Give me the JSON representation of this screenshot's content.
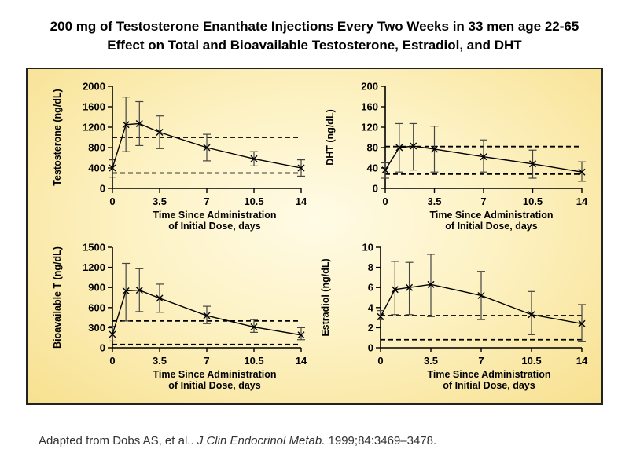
{
  "title": {
    "line1": "200 mg of Testosterone Enanthate Injections Every Two Weeks in 33  men age 22-65",
    "line2": "Effect on Total and Bioavailable Testosterone, Estradiol, and DHT"
  },
  "citation": {
    "prefix": "Adapted from Dobs AS,  et al.. ",
    "journal": "J Clin Endocrinol Metab.",
    "suffix": " 1999;84:3469–3478."
  },
  "colors": {
    "background_inner": "#fffbe6",
    "background_outer": "#f7e08f",
    "line": "#000000",
    "error_bar": "#444444"
  },
  "chart_data": [
    {
      "id": "testosterone",
      "type": "line",
      "title": "",
      "xlabel": [
        "Time Since Administration",
        "of Initial Dose, days"
      ],
      "ylabel": "Testosterone (ng/dL)",
      "xticks": [
        0,
        3.5,
        7,
        10.5,
        14
      ],
      "xtick_labels": [
        "0",
        "3.5",
        "7",
        "10.5",
        "14"
      ],
      "xlim": [
        0,
        14
      ],
      "yticks": [
        0,
        400,
        800,
        1200,
        1600,
        2000
      ],
      "ylim": [
        0,
        2000
      ],
      "grid": false,
      "reference_lines": [
        300,
        1000
      ],
      "series": [
        {
          "x": [
            0,
            1,
            2,
            3.5,
            7,
            10.5,
            14
          ],
          "y": [
            400,
            1250,
            1270,
            1100,
            800,
            580,
            400
          ],
          "err_low": [
            220,
            720,
            840,
            780,
            540,
            440,
            240
          ],
          "err_high": [
            560,
            1790,
            1700,
            1420,
            1060,
            720,
            560
          ]
        }
      ]
    },
    {
      "id": "dht",
      "type": "line",
      "title": "",
      "xlabel": [
        "Time Since Administration",
        "of Initial Dose, days"
      ],
      "ylabel": "DHT (ng/dL)",
      "xticks": [
        0,
        3.5,
        7,
        10.5,
        14
      ],
      "xtick_labels": [
        "0",
        "3.5",
        "7",
        "10.5",
        "14"
      ],
      "xlim": [
        0,
        14
      ],
      "yticks": [
        0,
        40,
        80,
        120,
        160,
        200
      ],
      "ylim": [
        0,
        200
      ],
      "grid": false,
      "reference_lines": [
        28,
        82
      ],
      "series": [
        {
          "x": [
            0,
            1,
            2,
            3.5,
            7,
            10.5,
            14
          ],
          "y": [
            36,
            80,
            83,
            77,
            62,
            48,
            32
          ],
          "err_low": [
            20,
            32,
            36,
            32,
            32,
            20,
            14
          ],
          "err_high": [
            50,
            127,
            127,
            122,
            95,
            75,
            52
          ]
        }
      ]
    },
    {
      "id": "bioavailable-t",
      "type": "line",
      "title": "",
      "xlabel": [
        "Time Since Administration",
        "of Initial Dose, days"
      ],
      "ylabel": "Bioavailable T (ng/dL)",
      "xticks": [
        0,
        3.5,
        7,
        10.5,
        14
      ],
      "xtick_labels": [
        "0",
        "3.5",
        "7",
        "10.5",
        "14"
      ],
      "xlim": [
        0,
        14
      ],
      "yticks": [
        0,
        300,
        600,
        900,
        1200,
        1500
      ],
      "ylim": [
        0,
        1500
      ],
      "grid": false,
      "reference_lines": [
        50,
        400
      ],
      "series": [
        {
          "x": [
            0,
            1,
            2,
            3.5,
            7,
            10.5,
            14
          ],
          "y": [
            200,
            850,
            860,
            740,
            480,
            310,
            190
          ],
          "err_low": [
            100,
            400,
            540,
            530,
            360,
            230,
            120
          ],
          "err_high": [
            320,
            1260,
            1180,
            950,
            620,
            420,
            300
          ]
        }
      ]
    },
    {
      "id": "estradiol",
      "type": "line",
      "title": "",
      "xlabel": [
        "Time Since Administration",
        "of Initial Dose, days"
      ],
      "ylabel": "Estradiol (ng/dL)",
      "xticks": [
        0,
        3.5,
        7,
        10.5,
        14
      ],
      "xtick_labels": [
        "0",
        "3.5",
        "7",
        "10.5",
        "14"
      ],
      "xlim": [
        0,
        14
      ],
      "yticks": [
        0,
        2,
        4,
        6,
        8,
        10
      ],
      "ylim": [
        0,
        10
      ],
      "grid": false,
      "reference_lines": [
        0.8,
        3.2
      ],
      "series": [
        {
          "x": [
            0,
            1,
            2,
            3.5,
            7,
            10.5,
            14
          ],
          "y": [
            3.1,
            5.8,
            6.0,
            6.3,
            5.2,
            3.3,
            2.4
          ],
          "err_low": [
            2.8,
            3.3,
            3.3,
            3.1,
            2.8,
            1.3,
            0.6
          ],
          "err_high": [
            3.7,
            8.6,
            8.5,
            9.3,
            7.6,
            5.6,
            4.3
          ]
        }
      ]
    }
  ]
}
